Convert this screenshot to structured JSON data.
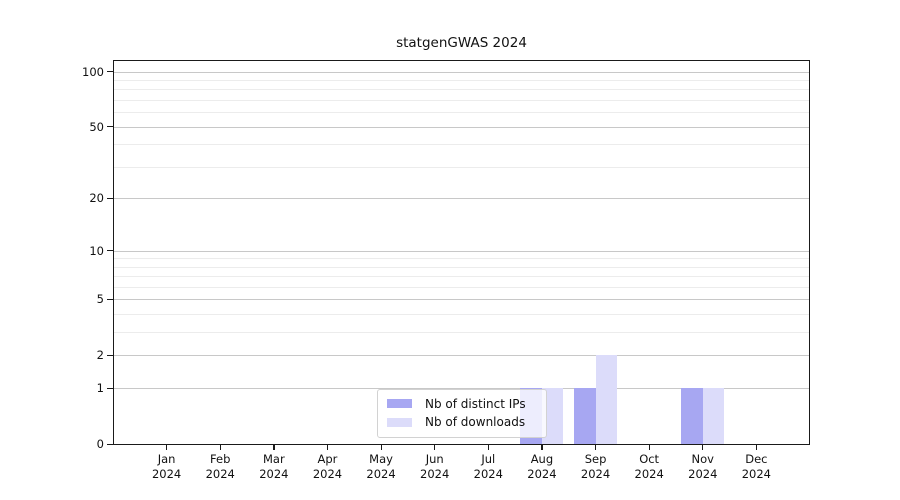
{
  "window": {
    "background": "#ffffff"
  },
  "chart_data": {
    "type": "bar",
    "title": "statgenGWAS 2024",
    "categories": [
      "Jan",
      "Feb",
      "Mar",
      "Apr",
      "May",
      "Jun",
      "Jul",
      "Aug",
      "Sep",
      "Oct",
      "Nov",
      "Dec"
    ],
    "x_year_label": "2024",
    "series": [
      {
        "name": "Nb of distinct IPs",
        "color": "#a7a7f2",
        "values": [
          0,
          0,
          0,
          0,
          0,
          0,
          0,
          1,
          1,
          0,
          1,
          0
        ]
      },
      {
        "name": "Nb of downloads",
        "color": "#dcdcfa",
        "values": [
          0,
          0,
          0,
          0,
          0,
          0,
          0,
          1,
          2,
          0,
          1,
          0
        ]
      }
    ],
    "xlabel": "",
    "ylabel": "",
    "yscale": "log1p",
    "ylim": [
      0,
      114
    ],
    "y_major_ticks": [
      0,
      1,
      2,
      5,
      10,
      20,
      50,
      100
    ],
    "y_minor_ticks": [
      3,
      4,
      6,
      7,
      8,
      9,
      30,
      40,
      60,
      70,
      80,
      90
    ],
    "grid": true,
    "legend_position": "lower center"
  },
  "colors": {
    "axis": "#1a1a1a",
    "major_grid": "#c8c8c8",
    "minor_grid": "#ececec",
    "legend_border": "#d2d2d2",
    "legend_bg": "rgba(255,255,255,0.8)"
  }
}
